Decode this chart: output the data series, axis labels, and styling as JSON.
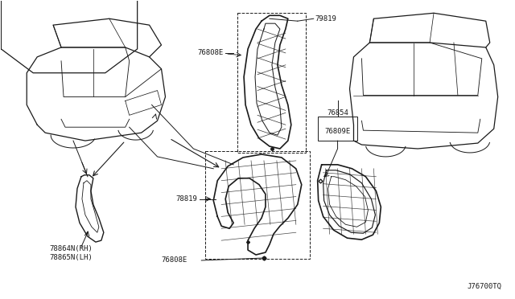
{
  "bg_color": "#ffffff",
  "line_color": "#1a1a1a",
  "fig_width": 6.4,
  "fig_height": 3.72,
  "dpi": 100,
  "diagram_id": "J76700TQ",
  "label_79819": "79819",
  "label_76808E": "76808E",
  "label_76854": "76854",
  "label_76809E": "76809E",
  "label_78819": "78819",
  "label_76808E_bot": "76808E",
  "label_78864": "78864N(RH)",
  "label_78865": "78865N(LH)"
}
